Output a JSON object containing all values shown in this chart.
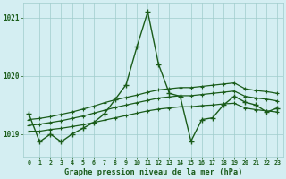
{
  "bg_color": "#d4eef2",
  "grid_color": "#a0cccc",
  "line_color": "#1a5c1a",
  "title": "Graphe pression niveau de la mer (hPa)",
  "ylim": [
    1018.62,
    1021.25
  ],
  "xlim": [
    -0.5,
    23.5
  ],
  "yticks": [
    1019,
    1020,
    1021
  ],
  "xticks": [
    0,
    1,
    2,
    3,
    4,
    5,
    6,
    7,
    8,
    9,
    10,
    11,
    12,
    13,
    14,
    15,
    16,
    17,
    18,
    19,
    20,
    21,
    22,
    23
  ],
  "observed": [
    1019.35,
    1018.87,
    1019.0,
    1018.87,
    1019.0,
    1019.1,
    1019.2,
    1019.35,
    1019.6,
    1019.85,
    1020.5,
    1021.1,
    1020.2,
    1019.7,
    1019.65,
    1018.88,
    1019.25,
    1019.28,
    1019.5,
    1019.65,
    1019.55,
    1019.5,
    1019.38,
    1019.45
  ],
  "trend1": [
    1019.05,
    1019.05,
    1019.08,
    1019.1,
    1019.13,
    1019.16,
    1019.2,
    1019.24,
    1019.28,
    1019.32,
    1019.36,
    1019.4,
    1019.43,
    1019.45,
    1019.47,
    1019.47,
    1019.49,
    1019.5,
    1019.52,
    1019.53,
    1019.45,
    1019.42,
    1019.4,
    1019.38
  ],
  "trend2": [
    1019.15,
    1019.17,
    1019.2,
    1019.23,
    1019.27,
    1019.31,
    1019.36,
    1019.41,
    1019.46,
    1019.5,
    1019.54,
    1019.58,
    1019.62,
    1019.64,
    1019.66,
    1019.66,
    1019.68,
    1019.7,
    1019.72,
    1019.74,
    1019.65,
    1019.62,
    1019.6,
    1019.57
  ],
  "trend3": [
    1019.25,
    1019.27,
    1019.3,
    1019.34,
    1019.38,
    1019.43,
    1019.48,
    1019.54,
    1019.59,
    1019.63,
    1019.67,
    1019.72,
    1019.76,
    1019.78,
    1019.8,
    1019.8,
    1019.82,
    1019.84,
    1019.86,
    1019.88,
    1019.78,
    1019.75,
    1019.73,
    1019.7
  ]
}
